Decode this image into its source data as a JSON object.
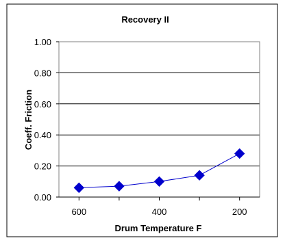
{
  "chart_data": {
    "type": "line",
    "title": "Recovery II",
    "xlabel": "Drum Temperature F",
    "ylabel": "Coeff. Friction",
    "x": [
      600,
      500,
      400,
      300,
      200
    ],
    "x_reversed": true,
    "xticks": [
      "600",
      "400",
      "200"
    ],
    "xlim": [
      650,
      150
    ],
    "ylim": [
      0,
      1
    ],
    "yticks": [
      "0.00",
      "0.20",
      "0.40",
      "0.60",
      "0.80",
      "1.00"
    ],
    "series": [
      {
        "values": [
          0.06,
          0.07,
          0.1,
          0.14,
          0.28
        ]
      }
    ],
    "marker": "diamond",
    "grid": "horizontal",
    "legend": "none",
    "colors": {
      "series": "#0000cc",
      "plot_border": "#808080",
      "grid": "#000000"
    }
  }
}
